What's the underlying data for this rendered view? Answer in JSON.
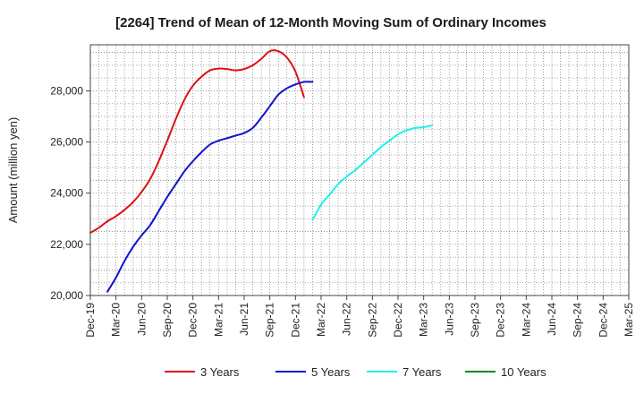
{
  "chart_data": {
    "type": "line",
    "title": "[2264]  Trend of Mean of 12-Month Moving Sum of Ordinary Incomes",
    "xlabel": "",
    "ylabel": "Amount (million yen)",
    "ylim": [
      20000,
      29800
    ],
    "yticks": [
      20000,
      22000,
      24000,
      26000,
      28000
    ],
    "ytick_labels": [
      "20,000",
      "22,000",
      "24,000",
      "26,000",
      "28,000"
    ],
    "x_start_month": "2019-12",
    "x_end_month": "2025-03",
    "xticks": [
      "Dec-19",
      "Mar-20",
      "Jun-20",
      "Sep-20",
      "Dec-20",
      "Mar-21",
      "Jun-21",
      "Sep-21",
      "Dec-21",
      "Mar-22",
      "Jun-22",
      "Sep-22",
      "Dec-22",
      "Mar-23",
      "Jun-23",
      "Sep-23",
      "Dec-23",
      "Mar-24",
      "Jun-24",
      "Sep-24",
      "Dec-24",
      "Mar-25"
    ],
    "grid": true,
    "legend_position": "bottom",
    "series": [
      {
        "name": "3 Years",
        "color": "#dd1111",
        "start_month": "2019-12",
        "values": [
          22450,
          22650,
          22900,
          23100,
          23350,
          23650,
          24050,
          24550,
          25250,
          26050,
          26900,
          27650,
          28200,
          28550,
          28800,
          28870,
          28850,
          28800,
          28850,
          29000,
          29250,
          29550,
          29550,
          29300,
          28750,
          27750
        ]
      },
      {
        "name": "5 Years",
        "color": "#1111cc",
        "start_month": "2020-02",
        "values": [
          20150,
          20700,
          21350,
          21900,
          22350,
          22750,
          23300,
          23850,
          24350,
          24850,
          25250,
          25600,
          25900,
          26050,
          26150,
          26250,
          26350,
          26550,
          26950,
          27400,
          27850,
          28100,
          28250,
          28350,
          28350
        ]
      },
      {
        "name": "7 Years",
        "color": "#22eeee",
        "start_month": "2022-02",
        "values": [
          22950,
          23550,
          23950,
          24350,
          24650,
          24900,
          25200,
          25500,
          25800,
          26050,
          26300,
          26450,
          26550,
          26580,
          26650
        ]
      },
      {
        "name": "10 Years",
        "color": "#118811",
        "start_month": "2019-12",
        "values": []
      }
    ]
  }
}
